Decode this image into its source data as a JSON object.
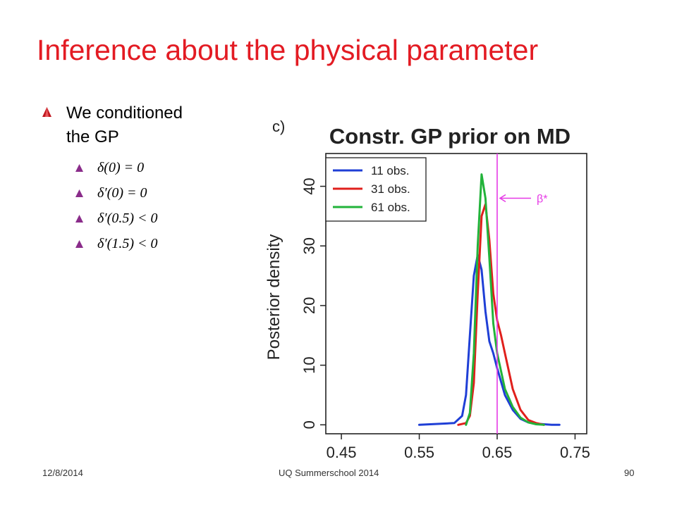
{
  "slide": {
    "title": "Inference about the physical parameter",
    "bullet_main": [
      "We conditioned",
      "the GP"
    ],
    "sub_bullets": [
      "δ(0) = 0",
      "δ′(0) = 0",
      "δ′(0.5) < 0",
      "δ′(1.5) < 0"
    ]
  },
  "footer": {
    "date": "12/8/2014",
    "center": "UQ Summerschool 2014",
    "page": "90"
  },
  "colors": {
    "title": "#e31b23",
    "bullet_l1": "#c0161e",
    "bullet_l2": "#8a2c8a",
    "blue": "#1f3fd6",
    "red": "#e0201c",
    "green": "#22b33a",
    "beta_line": "#e639e6"
  },
  "chart_data": {
    "type": "line",
    "panel_label": "c)",
    "title": "Constr. GP prior on MD",
    "xlabel": "",
    "ylabel": "Posterior density",
    "xlim": [
      0.43,
      0.765
    ],
    "ylim": [
      -1.5,
      45.5
    ],
    "xticks": [
      0.45,
      0.55,
      0.65,
      0.75
    ],
    "xtick_labels": [
      "0.45",
      "0.55",
      "0.65",
      "0.75"
    ],
    "yticks": [
      0,
      10,
      20,
      30,
      40
    ],
    "ytick_labels": [
      "0",
      "10",
      "20",
      "30",
      "40"
    ],
    "legend_position": "top-left",
    "annotation": {
      "text": "β*",
      "x": 0.65,
      "arrow_y": 38
    },
    "series": [
      {
        "name": "11 obs.",
        "color": "#1f3fd6",
        "x": [
          0.55,
          0.595,
          0.605,
          0.61,
          0.615,
          0.62,
          0.625,
          0.63,
          0.635,
          0.64,
          0.645,
          0.65,
          0.66,
          0.67,
          0.68,
          0.69,
          0.7,
          0.71,
          0.72,
          0.73
        ],
        "y": [
          0,
          0.3,
          1.5,
          5,
          15,
          25,
          28.5,
          26,
          19,
          14,
          12,
          9.5,
          5,
          2.5,
          1,
          0.4,
          0.2,
          0.1,
          0,
          0
        ]
      },
      {
        "name": "31 obs.",
        "color": "#e0201c",
        "x": [
          0.6,
          0.61,
          0.615,
          0.62,
          0.625,
          0.63,
          0.635,
          0.64,
          0.645,
          0.65,
          0.655,
          0.66,
          0.67,
          0.68,
          0.69,
          0.7,
          0.71
        ],
        "y": [
          0,
          0.3,
          1.5,
          7,
          22,
          35,
          37,
          31,
          22,
          17.5,
          15,
          12,
          6,
          2.5,
          0.8,
          0.3,
          0
        ]
      },
      {
        "name": "61 obs.",
        "color": "#22b33a",
        "x": [
          0.61,
          0.615,
          0.62,
          0.625,
          0.63,
          0.635,
          0.64,
          0.645,
          0.65,
          0.655,
          0.66,
          0.67,
          0.68,
          0.69,
          0.7,
          0.71
        ],
        "y": [
          0,
          2,
          12,
          30,
          42,
          38,
          28,
          17,
          12,
          9,
          6,
          3,
          1.2,
          0.4,
          0.1,
          0
        ]
      }
    ]
  }
}
